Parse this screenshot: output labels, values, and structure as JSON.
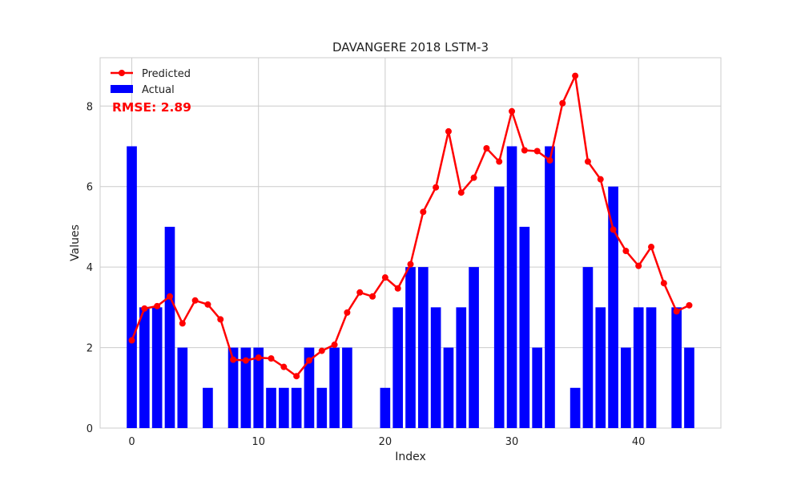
{
  "chart_data": {
    "type": "bar",
    "title": "DAVANGERE 2018 LSTM-3",
    "xlabel": "Index",
    "ylabel": "Values",
    "xlim": [
      -2.5,
      46.5
    ],
    "ylim": [
      0,
      9.2
    ],
    "xticks": [
      0,
      10,
      20,
      30,
      40
    ],
    "yticks": [
      0,
      2,
      4,
      6,
      8
    ],
    "grid": true,
    "legend_position": "top-left",
    "annotation": "RMSE: 2.89",
    "series": [
      {
        "name": "Actual",
        "type": "bar",
        "color": "#0000ff",
        "x": [
          0,
          1,
          2,
          3,
          4,
          5,
          6,
          7,
          8,
          9,
          10,
          11,
          12,
          13,
          14,
          15,
          16,
          17,
          18,
          19,
          20,
          21,
          22,
          23,
          24,
          25,
          26,
          27,
          28,
          29,
          30,
          31,
          32,
          33,
          34,
          35,
          36,
          37,
          38,
          39,
          40,
          41,
          42,
          43,
          44
        ],
        "values": [
          7,
          3,
          3,
          5,
          2,
          0,
          1,
          0,
          2,
          2,
          2,
          1,
          1,
          1,
          2,
          1,
          2,
          2,
          0,
          0,
          1,
          3,
          4,
          4,
          3,
          2,
          3,
          4,
          0,
          6,
          7,
          5,
          2,
          7,
          0,
          1,
          4,
          3,
          6,
          2,
          3,
          3,
          0,
          3,
          2
        ]
      },
      {
        "name": "Predicted",
        "type": "line",
        "color": "#ff0000",
        "x": [
          0,
          1,
          2,
          3,
          4,
          5,
          6,
          7,
          8,
          9,
          10,
          11,
          12,
          13,
          14,
          15,
          16,
          17,
          18,
          19,
          20,
          21,
          22,
          23,
          24,
          25,
          26,
          27,
          28,
          29,
          30,
          31,
          32,
          33,
          34,
          35,
          36,
          37,
          38,
          39,
          40,
          41,
          42,
          43,
          44
        ],
        "values": [
          2.18,
          2.97,
          3.03,
          3.27,
          2.6,
          3.17,
          3.07,
          2.7,
          1.7,
          1.68,
          1.75,
          1.73,
          1.52,
          1.29,
          1.68,
          1.92,
          2.07,
          2.87,
          3.37,
          3.27,
          3.74,
          3.47,
          4.07,
          5.37,
          5.98,
          7.37,
          5.85,
          6.22,
          6.95,
          6.62,
          7.87,
          6.9,
          6.88,
          6.65,
          8.07,
          8.75,
          6.62,
          6.18,
          4.93,
          4.4,
          4.03,
          4.5,
          3.6,
          2.9,
          3.05
        ]
      }
    ]
  }
}
